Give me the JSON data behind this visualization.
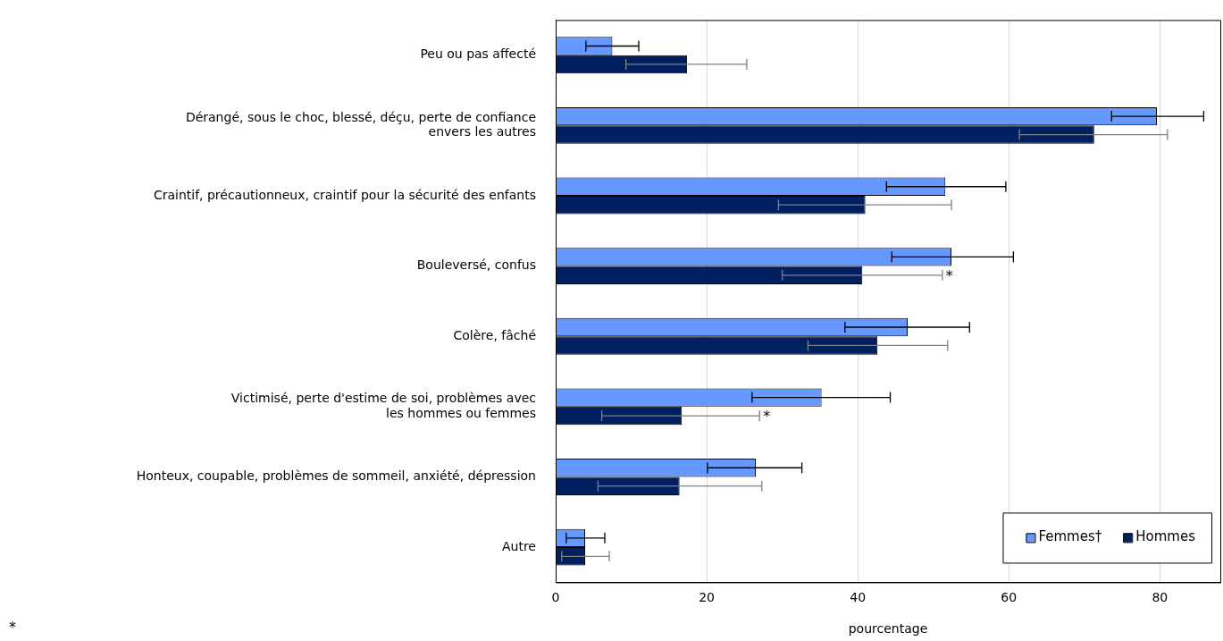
{
  "chart_data": {
    "type": "bar",
    "orientation": "horizontal",
    "xlabel": "pourcentage",
    "categories": [
      "Peu ou pas affecté",
      "Dérangé, sous le choc, blessé, déçu, perte de confiance\nenvers les autres",
      "Craintif, précautionneux, craintif pour la sécurité des enfants",
      "Bouleversé, confus",
      "Colère, fâché",
      "Victimisé, perte d'estime de soi, problèmes avec\nles hommes ou femmes",
      "Honteux, coupable, problèmes de sommeil, anxiété, dépression",
      "Autre"
    ],
    "series": [
      {
        "name": "Femmes†",
        "color": "#6699ff",
        "values": [
          7.5,
          79.6,
          51.6,
          52.4,
          46.6,
          35.2,
          26.5,
          3.9
        ],
        "errors": [
          [
            4,
            11
          ],
          [
            73.6,
            85.8
          ],
          [
            43.8,
            59.6
          ],
          [
            44.5,
            60.6
          ],
          [
            38.3,
            54.8
          ],
          [
            26,
            44.3
          ],
          [
            20.1,
            32.6
          ],
          [
            1.4,
            6.5
          ]
        ]
      },
      {
        "name": "Hommes",
        "color": "#002060",
        "values": [
          17.4,
          71.3,
          41,
          40.6,
          42.6,
          16.7,
          16.4,
          3.9
        ],
        "errors": [
          [
            9.3,
            25.3
          ],
          [
            61.4,
            81
          ],
          [
            29.5,
            52.4
          ],
          [
            30,
            51.2
          ],
          [
            33.4,
            51.9
          ],
          [
            6.1,
            27
          ],
          [
            5.6,
            27.3
          ],
          [
            0.8,
            7.1
          ]
        ]
      }
    ],
    "xlim": [
      0,
      88
    ],
    "xticks": [
      0,
      20,
      40,
      60,
      80
    ],
    "grid": "x",
    "legend": "bottom right",
    "annotations": [
      "*",
      {
        "text": "*",
        "x": 51.2,
        "y": "Bouleversé, confus"
      },
      {
        "text": "*",
        "x": 27,
        "y": "Victimisé, perte d'estime de soi, problèmes avec\nles hommes ou femmes"
      }
    ]
  }
}
